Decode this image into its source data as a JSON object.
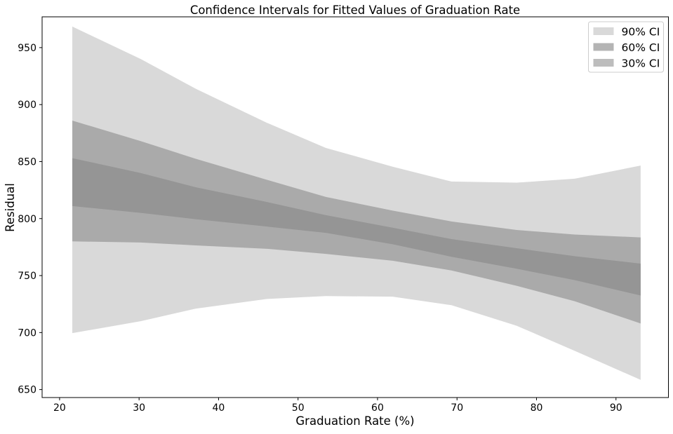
{
  "chart_data": {
    "type": "area",
    "title": "Confidence Intervals for Fitted Values of Graduation Rate",
    "xlabel": "Graduation Rate (%)",
    "ylabel": "Residual",
    "xlim": [
      17.8,
      96.6
    ],
    "ylim": [
      643,
      977
    ],
    "xticks": [
      20,
      30,
      40,
      50,
      60,
      70,
      80,
      90
    ],
    "yticks": [
      650,
      700,
      750,
      800,
      850,
      900,
      950
    ],
    "grid": false,
    "legend_position": "top-right",
    "x": [
      21.6,
      30.2,
      37.1,
      46.1,
      53.5,
      61.9,
      69.3,
      77.5,
      84.8,
      93.1
    ],
    "series": [
      {
        "name": "90% CI",
        "color": "#d9d9d9",
        "lower": [
          699.5,
          710,
          721,
          729.5,
          732,
          731.5,
          724,
          706,
          684,
          658.5
        ],
        "upper": [
          968.5,
          940,
          914,
          884,
          862,
          845.5,
          832.5,
          831.5,
          835,
          846.5
        ]
      },
      {
        "name": "60% CI",
        "color": "#aaaaaa",
        "lower": [
          780,
          779,
          776.5,
          773.5,
          769,
          763,
          754.5,
          741,
          727.5,
          708
        ],
        "upper": [
          886,
          868,
          852.5,
          834,
          819,
          807,
          797.5,
          790,
          786,
          783.5
        ]
      },
      {
        "name": "30% CI",
        "color": "#959595",
        "lower": [
          811,
          805,
          799.5,
          793,
          787.5,
          777.5,
          766.5,
          756,
          746,
          732.5
        ],
        "upper": [
          853,
          840,
          827.5,
          814.5,
          803,
          792,
          782,
          774,
          767,
          760.5
        ]
      }
    ],
    "legend": [
      {
        "label": "90% CI",
        "color": "#d9d9d9"
      },
      {
        "label": "60% CI",
        "color": "#b4b4b4"
      },
      {
        "label": "30% CI",
        "color": "#bdbdbd"
      }
    ]
  }
}
